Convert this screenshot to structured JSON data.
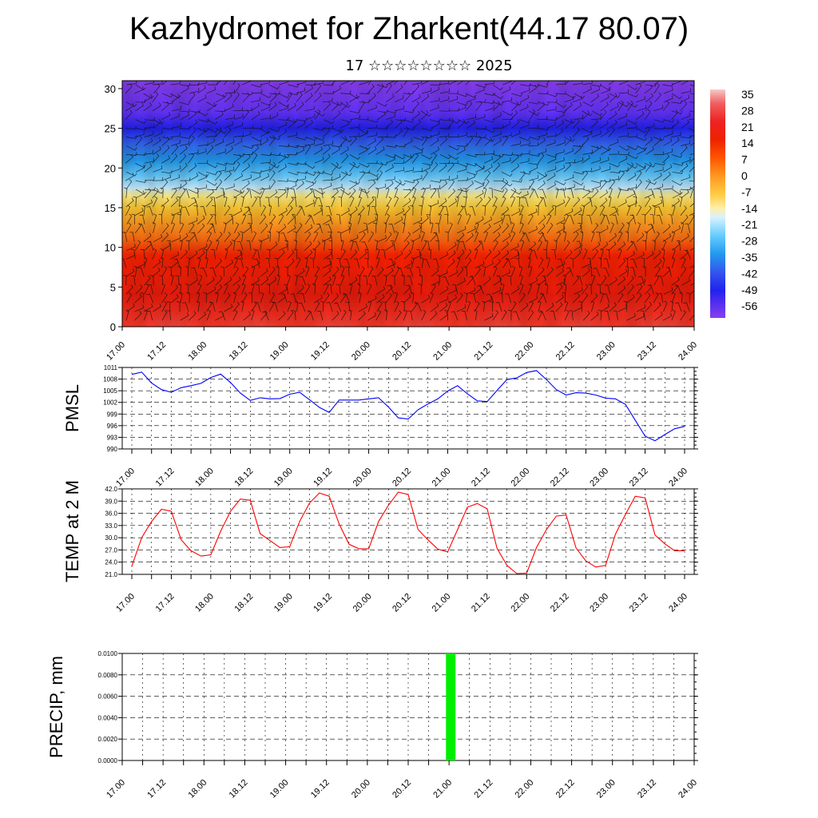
{
  "header": {
    "title": "Kazhydromet for Zharkent(44.17 80.07)",
    "subtitle": "17 ☆☆☆☆☆☆☆☆ 2025"
  },
  "time_labels": [
    "17.00",
    "17.12",
    "18.00",
    "18.12",
    "19.00",
    "19.12",
    "20.00",
    "20.12",
    "21.00",
    "21.12",
    "22.00",
    "22.12",
    "23.00",
    "23.12",
    "24.00"
  ],
  "colors": {
    "pmsl_line": "#0000ff",
    "temp_line": "#ff0000",
    "precip_bar": "#00ee00"
  },
  "chart_data": [
    {
      "type": "heatmap",
      "title": "",
      "xlabel": "",
      "ylabel": "",
      "ylim": [
        0,
        31
      ],
      "y_ticks": [
        "0",
        "5",
        "10",
        "15",
        "20",
        "25",
        "30"
      ],
      "colorbar": {
        "labels": [
          "35",
          "28",
          "21",
          "14",
          "7",
          "0",
          "-7",
          "-14",
          "-21",
          "-28",
          "-35",
          "-42",
          "-49",
          "-56"
        ]
      },
      "description_values": {
        "overlay": "wind barbs"
      }
    },
    {
      "type": "line",
      "ylabel": "PMSL",
      "ylim": [
        990,
        1011
      ],
      "y_ticks": [
        "990",
        "993",
        "996",
        "999",
        "1002",
        "1005",
        "1008",
        "1011"
      ],
      "x_hours": [
        0,
        3,
        6,
        9,
        12,
        15,
        18,
        21,
        24,
        27,
        30,
        33,
        36,
        39,
        42,
        45,
        48,
        51,
        54,
        57,
        60,
        63,
        66,
        69,
        72,
        75,
        78,
        81,
        84,
        87,
        90,
        93,
        96,
        99,
        102,
        105,
        108,
        111,
        114,
        117,
        120,
        123,
        126,
        129,
        132,
        135,
        138,
        141,
        144,
        147,
        150,
        153,
        156,
        159,
        162,
        165,
        168
      ],
      "values": [
        1009.2,
        1009.8,
        1007.0,
        1005.3,
        1004.6,
        1005.8,
        1006.3,
        1006.9,
        1008.4,
        1009.3,
        1007.1,
        1004.4,
        1002.5,
        1003.2,
        1002.9,
        1003.0,
        1004.1,
        1004.6,
        1002.7,
        1000.7,
        999.4,
        1002.6,
        1002.6,
        1002.6,
        1002.9,
        1003.2,
        1000.8,
        998.0,
        997.7,
        1000.1,
        1001.6,
        1002.9,
        1004.9,
        1006.3,
        1004.2,
        1002.4,
        1002.2,
        1005.1,
        1007.9,
        1008.3,
        1009.7,
        1010.2,
        1007.9,
        1005.3,
        1003.9,
        1004.5,
        1004.4,
        1003.9,
        1003.1,
        1002.9,
        1001.5,
        997.4,
        993.3,
        992.1,
        993.7,
        995.2,
        995.8
      ]
    },
    {
      "type": "line",
      "ylabel": "TEMP at 2 M",
      "ylim": [
        21.0,
        42.0
      ],
      "y_ticks": [
        "21.0",
        "24.0",
        "27.0",
        "30.0",
        "33.0",
        "36.0",
        "39.0",
        "42.0"
      ],
      "x_hours": [
        0,
        3,
        6,
        9,
        12,
        15,
        18,
        21,
        24,
        27,
        30,
        33,
        36,
        39,
        42,
        45,
        48,
        51,
        54,
        57,
        60,
        63,
        66,
        69,
        72,
        75,
        78,
        81,
        84,
        87,
        90,
        93,
        96,
        99,
        102,
        105,
        108,
        111,
        114,
        117,
        120,
        123,
        126,
        129,
        132,
        135,
        138,
        141,
        144,
        147,
        150,
        153,
        156,
        159,
        162,
        165,
        168
      ],
      "values": [
        23.0,
        30.0,
        34.0,
        37.0,
        36.5,
        29.5,
        26.8,
        25.5,
        25.8,
        31.6,
        36.5,
        39.5,
        39.2,
        31.0,
        29.3,
        27.6,
        27.8,
        34.0,
        38.5,
        41.0,
        40.2,
        33.4,
        28.4,
        27.3,
        27.3,
        34.0,
        38.0,
        41.2,
        40.6,
        32.0,
        29.5,
        27.2,
        26.5,
        32.0,
        37.5,
        38.4,
        37.1,
        27.4,
        23.2,
        21.2,
        21.3,
        27.6,
        32.0,
        35.3,
        35.6,
        27.5,
        24.3,
        22.8,
        23.2,
        30.9,
        35.7,
        40.2,
        39.8,
        30.7,
        28.5,
        26.8,
        26.8
      ]
    },
    {
      "type": "bar",
      "ylabel": "PRECIP, mm",
      "ylim": [
        0,
        0.01
      ],
      "y_ticks": [
        "0.0000",
        "0.0020",
        "0.0040",
        "0.0060",
        "0.0080",
        "0.0100"
      ],
      "bars": [
        {
          "x_hour": 96.5,
          "value": 0.01
        }
      ]
    }
  ]
}
